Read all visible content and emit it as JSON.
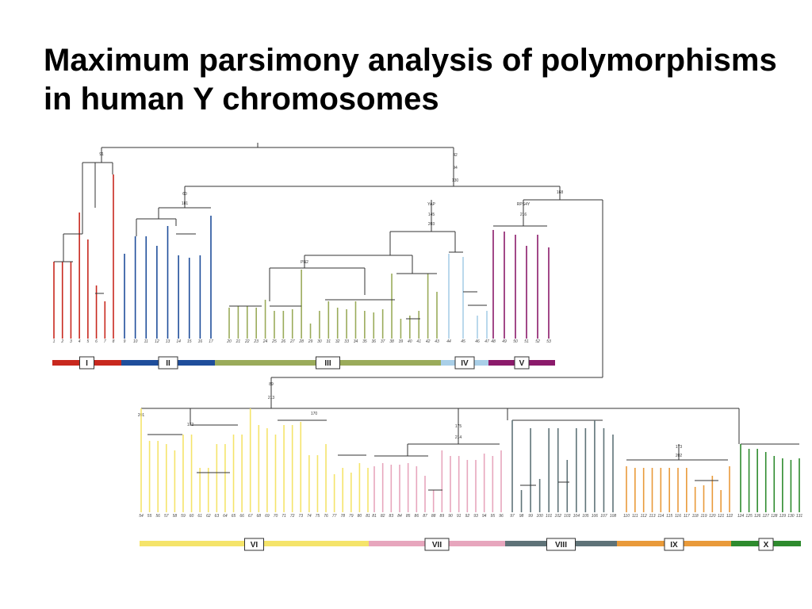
{
  "title": "Maximum parsimony analysis of polymorphisms in human Y chromosomes",
  "colors": {
    "I": "#c8281e",
    "II": "#1f4e9b",
    "III": "#9aab5a",
    "IV": "#a9cfe8",
    "V": "#8b1a6b",
    "VI": "#f5e46a",
    "VII": "#e7a6bd",
    "VIII": "#5f7378",
    "IX": "#e99a3a",
    "X": "#2e8b2e",
    "tree": "#333333"
  },
  "haplogroups": [
    {
      "id": "I",
      "label": "I"
    },
    {
      "id": "II",
      "label": "II"
    },
    {
      "id": "III",
      "label": "III"
    },
    {
      "id": "IV",
      "label": "IV"
    },
    {
      "id": "V",
      "label": "V"
    },
    {
      "id": "VI",
      "label": "VI"
    },
    {
      "id": "VII",
      "label": "VII"
    },
    {
      "id": "VIII",
      "label": "VIII"
    },
    {
      "id": "IX",
      "label": "IX"
    },
    {
      "id": "X",
      "label": "X"
    }
  ],
  "node_labels": {
    "root_a": "91",
    "root_b": "42",
    "n94": "94",
    "n130": "130",
    "n60": "60",
    "n181": "181",
    "n168": "168",
    "nYAP": "YAP",
    "n145": "145",
    "n203": "203",
    "nRPS4Y": "RPS4Y",
    "n216": "216",
    "nPN2": "PN2",
    "n89": "89",
    "n213": "213",
    "n201": "201",
    "n172": "172",
    "n170": "170",
    "n175": "175",
    "n214": "214",
    "n173": "173",
    "n202": "202"
  }
}
